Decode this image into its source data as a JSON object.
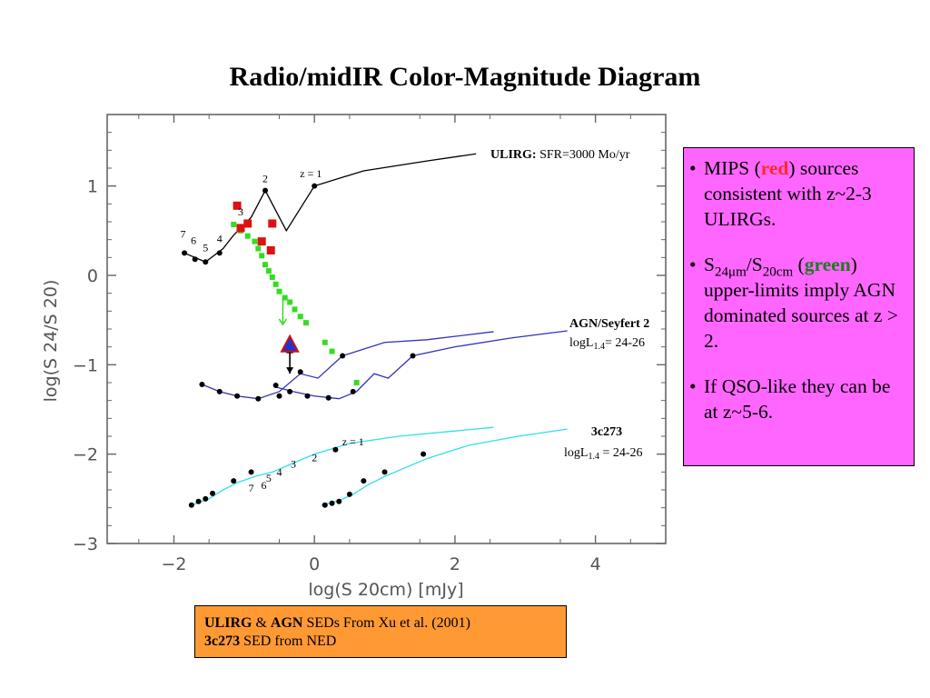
{
  "slide": {
    "title": "Radio/midIR Color-Magnitude Diagram",
    "bullets": {
      "b1_prefix": "MIPS (",
      "b1_red": "red",
      "b1_suffix": ") sources consistent with z~2-3 ULIRGs.",
      "b2_s": "S",
      "b2_sub1": "24μm",
      "b2_slash": "/S",
      "b2_sub2": "20cm",
      "b2_open": " (",
      "b2_green": "green",
      "b2_suffix": ") upper-limits imply AGN dominated sources at z > 2.",
      "b3": "If QSO-like they can be at z~5-6."
    },
    "reference": {
      "ulirg": "ULIRG",
      "amp": " & ",
      "agn": "AGN",
      "line1_rest": " SEDs  From Xu et al. (2001)",
      "qso": "3c273",
      "line2_rest": " SED from NED"
    },
    "colors": {
      "side_box": "#ff66ff",
      "ref_box": "#ff9933",
      "mips_red": "#dd1111",
      "upper_limit_green": "#33dd22",
      "ulirg_track": "#000000",
      "agn_track": "#3333bb",
      "qso_track": "#33ddee"
    }
  },
  "chart_data": {
    "type": "scatter",
    "title": "",
    "xlabel": "log(S 20cm) [mJy]",
    "ylabel": "log(S 24/S 20)",
    "xlim": [
      -2.95,
      5.0
    ],
    "ylim": [
      -3.0,
      1.8
    ],
    "xticks": [
      -2,
      0,
      2,
      4
    ],
    "yticks": [
      -3,
      -2,
      -1,
      0,
      1
    ],
    "xtick_labels": [
      "−2",
      "0",
      "2",
      "4"
    ],
    "ytick_labels": [
      "−3",
      "−2",
      "−1",
      "0",
      "1"
    ],
    "series": [
      {
        "kind": "line",
        "color": "#000000",
        "points": [
          [
            -1.85,
            0.25
          ],
          [
            -1.55,
            0.15
          ],
          [
            -1.3,
            0.3
          ],
          [
            -1.15,
            0.45
          ],
          [
            -0.9,
            0.65
          ],
          [
            -0.7,
            0.95
          ],
          [
            -0.4,
            0.5
          ],
          [
            0.0,
            1.0
          ],
          [
            0.7,
            1.17
          ],
          [
            1.6,
            1.28
          ],
          [
            2.3,
            1.36
          ]
        ],
        "markers": [
          [
            -1.85,
            0.25
          ],
          [
            -1.7,
            0.18
          ],
          [
            -1.55,
            0.15
          ],
          [
            -1.35,
            0.25
          ],
          [
            -0.7,
            0.95
          ],
          [
            0.0,
            1.0
          ]
        ]
      },
      {
        "kind": "line",
        "color": "#3333bb",
        "points": [
          [
            -1.6,
            -1.22
          ],
          [
            -1.35,
            -1.3
          ],
          [
            -1.1,
            -1.35
          ],
          [
            -0.8,
            -1.38
          ],
          [
            -0.5,
            -1.3
          ],
          [
            -0.2,
            -1.1
          ],
          [
            0.05,
            -1.15
          ],
          [
            0.4,
            -0.9
          ],
          [
            1.0,
            -0.75
          ],
          [
            1.6,
            -0.72
          ],
          [
            2.55,
            -0.63
          ]
        ],
        "markers": [
          [
            -1.6,
            -1.22
          ],
          [
            -1.35,
            -1.3
          ],
          [
            -1.1,
            -1.35
          ],
          [
            -0.8,
            -1.38
          ],
          [
            -0.5,
            -1.35
          ],
          [
            -0.2,
            -1.08
          ],
          [
            0.4,
            -0.9
          ]
        ]
      },
      {
        "kind": "line",
        "color": "#3333bb",
        "points": [
          [
            -0.55,
            -1.25
          ],
          [
            -0.3,
            -1.3
          ],
          [
            0.0,
            -1.35
          ],
          [
            0.35,
            -1.38
          ],
          [
            0.6,
            -1.3
          ],
          [
            0.85,
            -1.1
          ],
          [
            1.05,
            -1.15
          ],
          [
            1.4,
            -0.9
          ],
          [
            2.0,
            -0.8
          ],
          [
            2.8,
            -0.7
          ],
          [
            3.6,
            -0.62
          ]
        ],
        "markers": [
          [
            -0.55,
            -1.23
          ],
          [
            -0.35,
            -1.3
          ],
          [
            -0.1,
            -1.35
          ],
          [
            0.2,
            -1.37
          ],
          [
            0.55,
            -1.3
          ],
          [
            1.4,
            -0.9
          ]
        ]
      },
      {
        "kind": "line",
        "color": "#33ddee",
        "points": [
          [
            -1.75,
            -2.57
          ],
          [
            -1.5,
            -2.5
          ],
          [
            -1.3,
            -2.4
          ],
          [
            -1.1,
            -2.32
          ],
          [
            -0.85,
            -2.25
          ],
          [
            -0.6,
            -2.2
          ],
          [
            -0.3,
            -2.1
          ],
          [
            0.0,
            -2.0
          ],
          [
            0.5,
            -1.88
          ],
          [
            1.2,
            -1.8
          ],
          [
            2.55,
            -1.7
          ]
        ],
        "markers": [
          [
            -1.75,
            -2.57
          ],
          [
            -1.65,
            -2.53
          ],
          [
            -1.55,
            -2.5
          ],
          [
            -1.45,
            -2.44
          ],
          [
            -1.15,
            -2.3
          ],
          [
            -0.9,
            -2.2
          ],
          [
            0.3,
            -1.95
          ]
        ]
      },
      {
        "kind": "line",
        "color": "#33ddee",
        "points": [
          [
            0.1,
            -2.57
          ],
          [
            0.35,
            -2.52
          ],
          [
            0.55,
            -2.45
          ],
          [
            0.75,
            -2.35
          ],
          [
            1.0,
            -2.25
          ],
          [
            1.3,
            -2.15
          ],
          [
            1.6,
            -2.05
          ],
          [
            2.2,
            -1.9
          ],
          [
            2.9,
            -1.8
          ],
          [
            3.6,
            -1.72
          ]
        ],
        "markers": [
          [
            0.15,
            -2.57
          ],
          [
            0.25,
            -2.55
          ],
          [
            0.35,
            -2.53
          ],
          [
            0.5,
            -2.45
          ],
          [
            0.7,
            -2.3
          ],
          [
            1.0,
            -2.2
          ],
          [
            1.55,
            -2.0
          ]
        ]
      }
    ],
    "red_squares": [
      [
        -1.1,
        0.78
      ],
      [
        -1.05,
        0.53
      ],
      [
        -0.95,
        0.58
      ],
      [
        -0.6,
        0.58
      ],
      [
        -0.75,
        0.38
      ],
      [
        -0.62,
        0.28
      ]
    ],
    "green_upper_limits": [
      [
        -1.15,
        0.57
      ],
      [
        -1.05,
        0.5
      ],
      [
        -0.95,
        0.44
      ],
      [
        -0.85,
        0.38
      ],
      [
        -0.8,
        0.3
      ],
      [
        -0.75,
        0.22
      ],
      [
        -0.7,
        0.12
      ],
      [
        -0.65,
        0.05
      ],
      [
        -0.6,
        -0.02
      ],
      [
        -0.55,
        -0.1
      ],
      [
        -0.5,
        -0.18
      ],
      [
        -0.42,
        -0.25
      ],
      [
        -0.35,
        -0.3
      ],
      [
        -0.28,
        -0.38
      ],
      [
        -0.2,
        -0.46
      ],
      [
        -0.12,
        -0.53
      ],
      [
        0.15,
        -0.75
      ],
      [
        0.25,
        -0.85
      ],
      [
        0.6,
        -1.2
      ]
    ],
    "green_arrow": {
      "x": -0.45,
      "y_from": -0.25,
      "y_to": -0.55
    },
    "blue_triangle": {
      "x": -0.35,
      "y": -0.77
    },
    "black_arrow": {
      "x": -0.35,
      "y_from": -1.1,
      "y_to": -0.8
    },
    "annotations": {
      "ulirg_label_bold": "ULIRG:",
      "ulirg_label_rest": " SFR=3000 Mo/yr",
      "agn_label": "AGN/Seyfert 2",
      "agn_lum_prefix": "logL",
      "agn_lum_sub": "1.4",
      "agn_lum_suffix": "= 24-26",
      "qso_label": "3c273",
      "qso_lum_prefix": "logL",
      "qso_lum_sub": "1.4",
      "qso_lum_suffix": " = 24-26",
      "z_labels_top": [
        {
          "text": "z = 1",
          "x": -0.05,
          "y": 1.1
        },
        {
          "text": "2",
          "x": -0.7,
          "y": 1.04
        },
        {
          "text": "3",
          "x": -1.05,
          "y": 0.67
        },
        {
          "text": "4",
          "x": -1.35,
          "y": 0.37
        },
        {
          "text": "5",
          "x": -1.55,
          "y": 0.27
        },
        {
          "text": "6",
          "x": -1.72,
          "y": 0.35
        },
        {
          "text": "7",
          "x": -1.87,
          "y": 0.42
        }
      ],
      "z_labels_bottom": [
        {
          "text": "z = 1",
          "x": 0.55,
          "y": -1.9
        },
        {
          "text": "2",
          "x": 0.0,
          "y": -2.08
        },
        {
          "text": "3",
          "x": -0.3,
          "y": -2.15
        },
        {
          "text": "4",
          "x": -0.5,
          "y": -2.24
        },
        {
          "text": "5",
          "x": -0.65,
          "y": -2.31
        },
        {
          "text": "6",
          "x": -0.72,
          "y": -2.39
        },
        {
          "text": "7",
          "x": -0.9,
          "y": -2.42
        }
      ]
    }
  }
}
